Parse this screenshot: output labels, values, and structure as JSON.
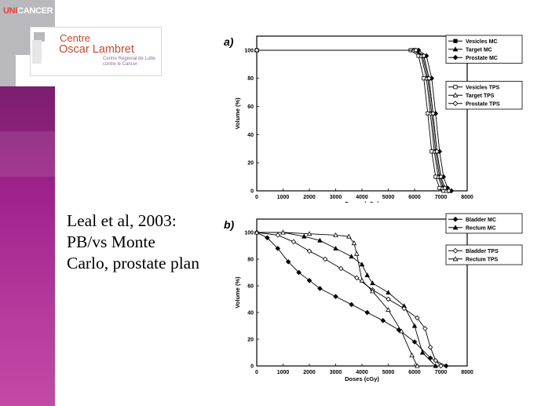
{
  "logos": {
    "unicancer_part1": "UNI",
    "unicancer_part2": "CANCER",
    "centre_line1": "Centre",
    "centre_line2": "Oscar Lambret",
    "centre_subtitle_line1": "Centre Régional de Lutte",
    "centre_subtitle_line2": "contre le Cancer"
  },
  "caption": {
    "line1": "Leal et al, 2003:",
    "line2": "PB/vs Monte",
    "line3": "Carlo, prostate plan"
  },
  "colors": {
    "purple": "#a0238c",
    "grey": "#b9b9bd",
    "logo_orange": "#c64a2d"
  },
  "chart_data": [
    {
      "type": "line",
      "panel_label": "a)",
      "xlabel": "Doses (cGy)",
      "ylabel": "Volume (%)",
      "xlim": [
        0,
        8000
      ],
      "ylim": [
        0,
        110
      ],
      "xticks": [
        0,
        1000,
        2000,
        3000,
        4000,
        5000,
        6000,
        7000,
        8000
      ],
      "yticks": [
        0,
        20,
        40,
        60,
        80,
        100
      ],
      "legend_groups": [
        [
          "Vesicles MC",
          "Target MC",
          "Prostate MC"
        ],
        [
          "Vesicles TPS",
          "Target TPS",
          "Prostate TPS"
        ]
      ],
      "series": [
        {
          "name": "Vesicles MC",
          "marker": "square-filled",
          "x": [
            0,
            6000,
            6300,
            6500,
            6650,
            6800,
            6950,
            7100,
            7250
          ],
          "y": [
            100,
            100,
            96,
            80,
            55,
            28,
            10,
            2,
            0
          ]
        },
        {
          "name": "Target MC",
          "marker": "triangle-filled",
          "x": [
            0,
            6050,
            6350,
            6550,
            6700,
            6850,
            7000,
            7150,
            7300
          ],
          "y": [
            100,
            100,
            96,
            80,
            55,
            28,
            10,
            2,
            0
          ]
        },
        {
          "name": "Prostate MC",
          "marker": "diamond-filled",
          "x": [
            0,
            6150,
            6450,
            6650,
            6800,
            6950,
            7100,
            7250,
            7400
          ],
          "y": [
            100,
            100,
            96,
            80,
            55,
            28,
            10,
            2,
            0
          ]
        },
        {
          "name": "Vesicles TPS",
          "marker": "square-open",
          "x": [
            0,
            5850,
            6150,
            6350,
            6500,
            6650,
            6800,
            6950,
            7100
          ],
          "y": [
            100,
            100,
            96,
            80,
            55,
            28,
            10,
            2,
            0
          ]
        },
        {
          "name": "Target TPS",
          "marker": "triangle-open",
          "x": [
            0,
            5950,
            6250,
            6450,
            6600,
            6750,
            6900,
            7050,
            7200
          ],
          "y": [
            100,
            100,
            96,
            80,
            55,
            28,
            10,
            2,
            0
          ]
        },
        {
          "name": "Prostate TPS",
          "marker": "diamond-open",
          "x": [
            0,
            6050,
            6350,
            6550,
            6700,
            6850,
            7000,
            7150,
            7300
          ],
          "y": [
            100,
            100,
            96,
            80,
            55,
            28,
            10,
            2,
            0
          ]
        }
      ]
    },
    {
      "type": "line",
      "panel_label": "b)",
      "xlabel": "Doses (cGy)",
      "ylabel": "Volume (%)",
      "xlim": [
        0,
        8000
      ],
      "ylim": [
        0,
        110
      ],
      "xticks": [
        0,
        1000,
        2000,
        3000,
        4000,
        5000,
        6000,
        7000,
        8000
      ],
      "yticks": [
        0,
        20,
        40,
        60,
        80,
        100
      ],
      "legend_groups": [
        [
          "Bladder MC",
          "Rectum MC"
        ],
        [
          "Bladder TPS",
          "Rectum TPS"
        ]
      ],
      "series": [
        {
          "name": "Bladder MC",
          "marker": "diamond-filled",
          "x": [
            0,
            400,
            800,
            1200,
            1600,
            2000,
            2400,
            3000,
            3600,
            4200,
            4800,
            5400,
            6000,
            6600,
            7200
          ],
          "y": [
            100,
            96,
            88,
            78,
            70,
            64,
            58,
            52,
            46,
            40,
            34,
            27,
            18,
            6,
            0
          ]
        },
        {
          "name": "Rectum MC",
          "marker": "triangle-filled",
          "x": [
            0,
            1000,
            1800,
            2400,
            3000,
            3600,
            4000,
            4200,
            4400,
            5000,
            5600,
            6000,
            6300,
            6800
          ],
          "y": [
            100,
            100,
            97,
            94,
            88,
            82,
            76,
            68,
            62,
            55,
            45,
            30,
            10,
            0
          ]
        },
        {
          "name": "Bladder TPS",
          "marker": "diamond-open",
          "x": [
            0,
            800,
            1400,
            2000,
            2600,
            3200,
            3800,
            4400,
            5000,
            5600,
            6100,
            6400,
            6600,
            6800,
            7000
          ],
          "y": [
            100,
            98,
            93,
            86,
            80,
            73,
            66,
            57,
            50,
            43,
            36,
            28,
            14,
            4,
            0
          ]
        },
        {
          "name": "Rectum TPS",
          "marker": "triangle-open",
          "x": [
            0,
            1000,
            2000,
            3000,
            3500,
            3700,
            3800,
            4000,
            4400,
            5000,
            5500,
            5900,
            6100
          ],
          "y": [
            100,
            100,
            99,
            98,
            97,
            92,
            84,
            64,
            56,
            42,
            26,
            8,
            0
          ]
        }
      ]
    }
  ]
}
